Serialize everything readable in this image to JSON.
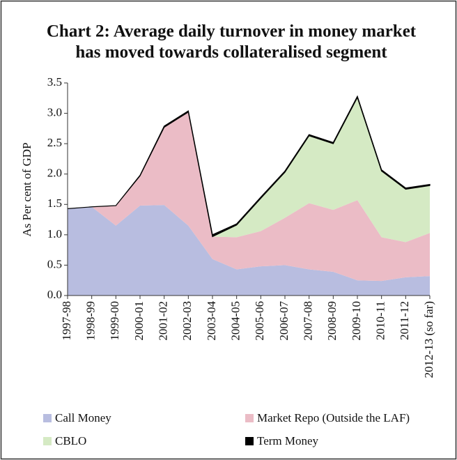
{
  "chart_data": {
    "type": "stacked_area",
    "title": "Chart 2:  Average daily turnover in money market",
    "subtitle": "has moved towards collateralised segment",
    "y_label": "As Per cent of GDP",
    "categories": [
      "1997-98",
      "1998-99",
      "1999-00",
      "2000-01",
      "2001-02",
      "2002-03",
      "2003-04",
      "2004-05",
      "2005-06",
      "2006-07",
      "2007-08",
      "2008-09",
      "2009-10",
      "2010-11",
      "2011-12",
      "2012-13 (so far)"
    ],
    "series": [
      {
        "name": "Call Money",
        "color": "#b8bde0",
        "values": [
          1.43,
          1.46,
          1.15,
          1.48,
          1.49,
          1.15,
          0.6,
          0.43,
          0.48,
          0.5,
          0.43,
          0.39,
          0.25,
          0.24,
          0.3,
          0.32
        ]
      },
      {
        "name": "Market Repo (Outside the LAF)",
        "color": "#ebbcc6",
        "values": [
          0,
          0,
          0.33,
          0.49,
          1.28,
          1.87,
          0.37,
          0.53,
          0.58,
          0.78,
          1.09,
          1.02,
          1.32,
          0.72,
          0.58,
          0.71
        ]
      },
      {
        "name": "CBLO",
        "color": "#d5eac4",
        "values": [
          0,
          0,
          0,
          0,
          0,
          0,
          0,
          0.2,
          0.54,
          0.75,
          1.11,
          1.09,
          1.69,
          1.09,
          0.87,
          0.78
        ]
      },
      {
        "name": "Term Money",
        "color": "#000000",
        "values": [
          0,
          0,
          0,
          0.01,
          0.02,
          0.02,
          0.03,
          0.02,
          0.02,
          0.02,
          0.02,
          0.02,
          0.02,
          0.02,
          0.02,
          0.02
        ]
      }
    ],
    "ylim": [
      0,
      3.5
    ],
    "yticks": [
      {
        "value": 0,
        "label": "0.0"
      },
      0.5,
      {
        "value": 1,
        "label": "1.0"
      },
      1.5,
      {
        "value": 2,
        "label": "2.0"
      },
      2.5,
      {
        "value": 3,
        "label": "3.0"
      },
      3.5
    ],
    "legend": "bottom"
  }
}
